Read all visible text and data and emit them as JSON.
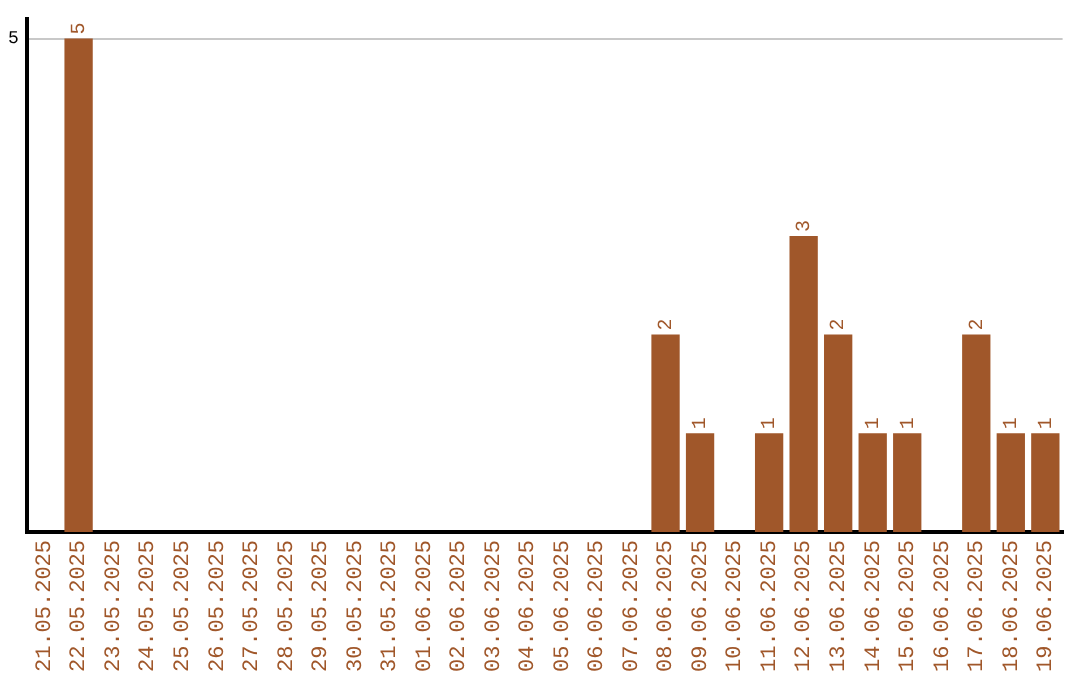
{
  "chart_data": {
    "type": "bar",
    "categories": [
      "21.05.2025",
      "22.05.2025",
      "23.05.2025",
      "24.05.2025",
      "25.05.2025",
      "26.05.2025",
      "27.05.2025",
      "28.05.2025",
      "29.05.2025",
      "30.05.2025",
      "31.05.2025",
      "01.06.2025",
      "02.06.2025",
      "03.06.2025",
      "04.06.2025",
      "05.06.2025",
      "06.06.2025",
      "07.06.2025",
      "08.06.2025",
      "09.06.2025",
      "10.06.2025",
      "11.06.2025",
      "12.06.2025",
      "13.06.2025",
      "14.06.2025",
      "15.06.2025",
      "16.06.2025",
      "17.06.2025",
      "18.06.2025",
      "19.06.2025"
    ],
    "values": [
      0,
      5,
      0,
      0,
      0,
      0,
      0,
      0,
      0,
      0,
      0,
      0,
      0,
      0,
      0,
      0,
      0,
      0,
      2,
      1,
      0,
      1,
      3,
      2,
      1,
      1,
      0,
      2,
      1,
      1
    ],
    "value_labels": [
      null,
      "5",
      null,
      null,
      null,
      null,
      null,
      null,
      null,
      null,
      null,
      null,
      null,
      null,
      null,
      null,
      null,
      null,
      "2",
      "1",
      null,
      "1",
      "3",
      "2",
      "1",
      "1",
      null,
      "2",
      "1",
      "1"
    ],
    "color": "#a0572a",
    "ylim": [
      0,
      5.2
    ],
    "yticks": [
      5
    ],
    "grid": "y",
    "legend": false
  }
}
